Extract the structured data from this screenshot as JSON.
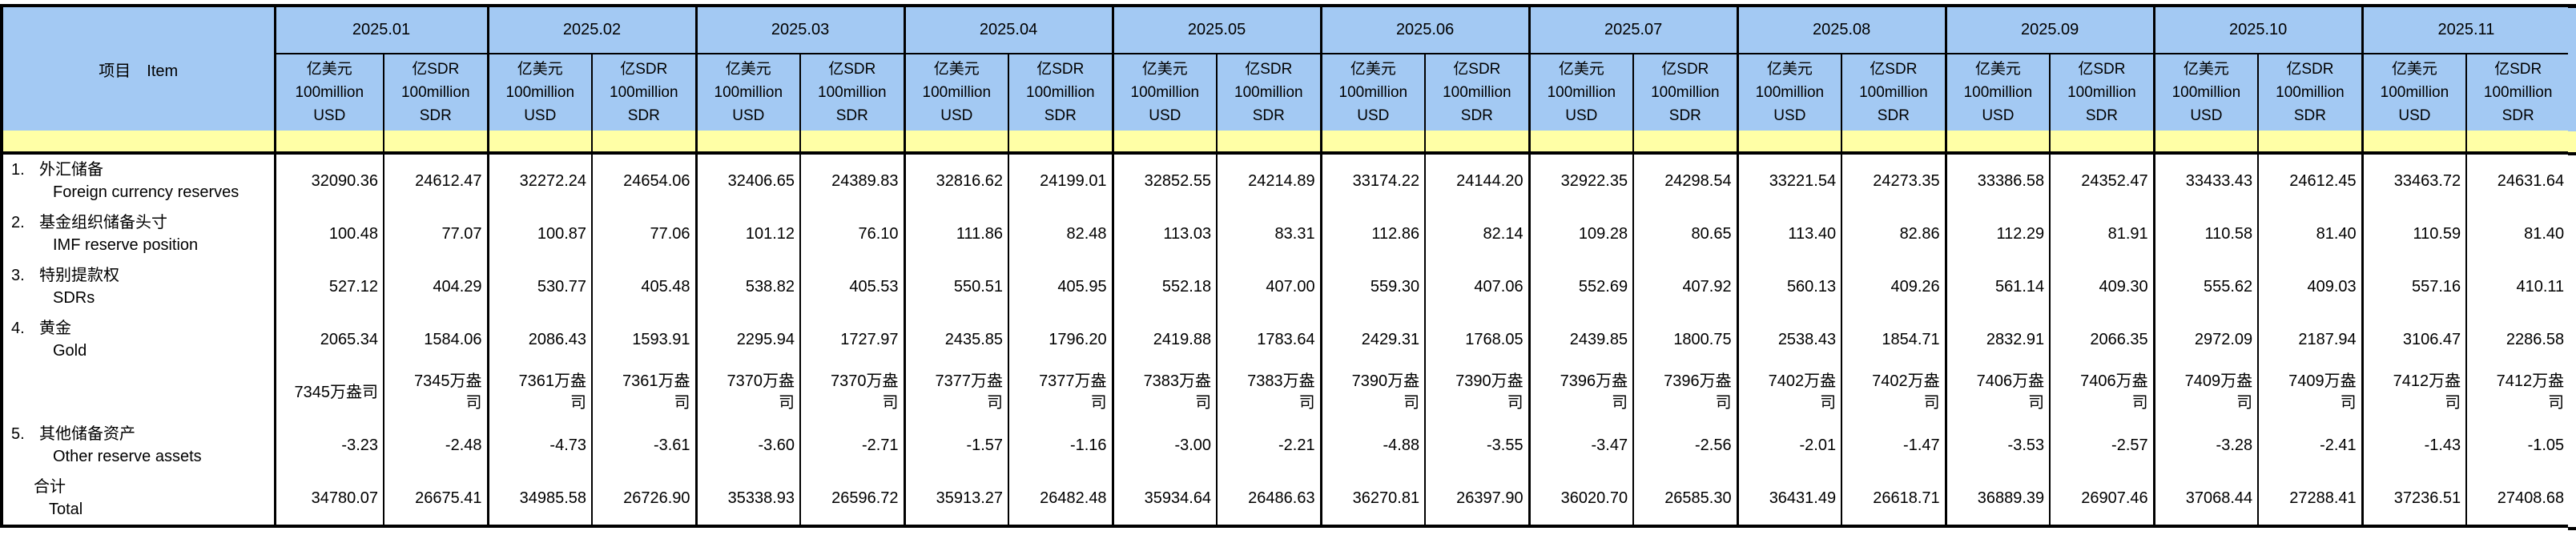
{
  "table": {
    "item_header": "项目　Item",
    "months": [
      "2025.01",
      "2025.02",
      "2025.03",
      "2025.04",
      "2025.05",
      "2025.06",
      "2025.07",
      "2025.08",
      "2025.09",
      "2025.10",
      "2025.11"
    ],
    "units": {
      "usd": [
        "亿美元",
        "100million",
        "USD"
      ],
      "sdr": [
        "亿SDR",
        "100million",
        "SDR"
      ]
    },
    "rows": [
      {
        "num": "1.",
        "zh": "外汇储备",
        "en": "Foreign currency reserves",
        "type": "item",
        "usd": [
          "32090.36",
          "32272.24",
          "32406.65",
          "32816.62",
          "32852.55",
          "33174.22",
          "32922.35",
          "33221.54",
          "33386.58",
          "33433.43",
          "33463.72"
        ],
        "sdr": [
          "24612.47",
          "24654.06",
          "24389.83",
          "24199.01",
          "24214.89",
          "24144.20",
          "24298.54",
          "24273.35",
          "24352.47",
          "24612.45",
          "24631.64"
        ]
      },
      {
        "num": "2.",
        "zh": "基金组织储备头寸",
        "en": "IMF reserve position",
        "type": "item",
        "usd": [
          "100.48",
          "100.87",
          "101.12",
          "111.86",
          "113.03",
          "112.86",
          "109.28",
          "113.40",
          "112.29",
          "110.58",
          "110.59"
        ],
        "sdr": [
          "77.07",
          "77.06",
          "76.10",
          "82.48",
          "83.31",
          "82.14",
          "80.65",
          "82.86",
          "81.91",
          "81.40",
          "81.40"
        ]
      },
      {
        "num": "3.",
        "zh": "特别提款权",
        "en": "SDRs",
        "type": "item",
        "usd": [
          "527.12",
          "530.77",
          "538.82",
          "550.51",
          "552.18",
          "559.30",
          "552.69",
          "560.13",
          "561.14",
          "555.62",
          "557.16"
        ],
        "sdr": [
          "404.29",
          "405.48",
          "405.53",
          "405.95",
          "407.00",
          "407.06",
          "407.92",
          "409.26",
          "409.30",
          "409.03",
          "410.11"
        ]
      },
      {
        "num": "4.",
        "zh": "黄金",
        "en": "Gold",
        "type": "item",
        "usd": [
          "2065.34",
          "2086.43",
          "2295.94",
          "2435.85",
          "2419.88",
          "2429.31",
          "2439.85",
          "2538.43",
          "2832.91",
          "2972.09",
          "3106.47"
        ],
        "sdr": [
          "1584.06",
          "1593.91",
          "1727.97",
          "1796.20",
          "1783.64",
          "1768.05",
          "1800.75",
          "1854.71",
          "2066.35",
          "2187.94",
          "2286.58"
        ]
      },
      {
        "num": "",
        "zh": "",
        "en": "",
        "type": "oz",
        "usd": [
          "7345万盎司",
          "7361万盎司",
          "7370万盎司",
          "7377万盎司",
          "7383万盎司",
          "7390万盎司",
          "7396万盎司",
          "7402万盎司",
          "7406万盎司",
          "7409万盎司",
          "7412万盎司"
        ],
        "sdr": [
          "7345万盎司",
          "7361万盎司",
          "7370万盎司",
          "7377万盎司",
          "7383万盎司",
          "7390万盎司",
          "7396万盎司",
          "7402万盎司",
          "7406万盎司",
          "7409万盎司",
          "7412万盎司"
        ]
      },
      {
        "num": "5.",
        "zh": "其他储备资产",
        "en": "Other reserve assets",
        "type": "item",
        "usd": [
          "-3.23",
          "-4.73",
          "-3.60",
          "-1.57",
          "-3.00",
          "-4.88",
          "-3.47",
          "-2.01",
          "-3.53",
          "-3.28",
          "-1.43"
        ],
        "sdr": [
          "-2.48",
          "-3.61",
          "-2.71",
          "-1.16",
          "-2.21",
          "-3.55",
          "-2.56",
          "-1.47",
          "-2.57",
          "-2.41",
          "-1.05"
        ]
      },
      {
        "num": "",
        "zh": "合计",
        "en": "Total",
        "type": "total",
        "usd": [
          "34780.07",
          "34985.58",
          "35338.93",
          "35913.27",
          "35934.64",
          "36270.81",
          "36020.70",
          "36431.49",
          "36889.39",
          "37068.44",
          "37236.51"
        ],
        "sdr": [
          "26675.41",
          "26726.90",
          "26596.72",
          "26482.48",
          "26486.63",
          "26397.90",
          "26585.30",
          "26618.71",
          "26907.46",
          "27288.41",
          "27408.68"
        ]
      }
    ],
    "colors": {
      "header_blue": "#A3C9F3",
      "strip_yellow": "#FFFFA6",
      "border": "#000000"
    }
  }
}
